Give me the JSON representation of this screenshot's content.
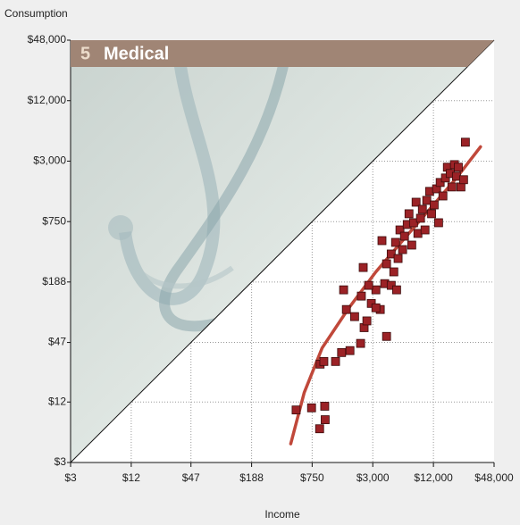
{
  "chart_data": {
    "type": "scatter",
    "panel": "5",
    "title": "Medical",
    "xlabel": "Income",
    "ylabel": "Consumption",
    "xscale": "log",
    "yscale": "log",
    "xlim": [
      3,
      48000
    ],
    "ylim": [
      3,
      48000
    ],
    "xticks": [
      {
        "value": 3,
        "label": "$3"
      },
      {
        "value": 12,
        "label": "$12"
      },
      {
        "value": 47,
        "label": "$47"
      },
      {
        "value": 188,
        "label": "$188"
      },
      {
        "value": 750,
        "label": "$750"
      },
      {
        "value": 3000,
        "label": "$3,000"
      },
      {
        "value": 12000,
        "label": "$12,000"
      },
      {
        "value": 48000,
        "label": "$48,000"
      }
    ],
    "yticks": [
      {
        "value": 3,
        "label": "$3"
      },
      {
        "value": 12,
        "label": "$12"
      },
      {
        "value": 47,
        "label": "$47"
      },
      {
        "value": 188,
        "label": "$188"
      },
      {
        "value": 750,
        "label": "$750"
      },
      {
        "value": 3000,
        "label": "$3,000"
      },
      {
        "value": 12000,
        "label": "$12,000"
      },
      {
        "value": 48000,
        "label": "$48,000"
      }
    ],
    "grid": true,
    "points": {
      "color": "#9b2226",
      "x": [
        520,
        740,
        1000,
        1010,
        890,
        900,
        980,
        1280,
        1470,
        1780,
        1640,
        1540,
        2270,
        2460,
        2310,
        2410,
        2620,
        2900,
        3220,
        3560,
        4110,
        3940,
        4110,
        4570,
        4850,
        5050,
        5350,
        5580,
        5930,
        6190,
        6590,
        6860,
        7310,
        7620,
        8070,
        8410,
        8930,
        9320,
        9900,
        10300,
        11000,
        11500,
        12200,
        12900,
        13500,
        14000,
        14900,
        15800,
        16500,
        17600,
        18300,
        19400,
        20300,
        21200,
        22500,
        23900,
        24900,
        3700,
        1980,
        2730,
        3220,
        4570,
        5170
      ],
      "y": [
        10,
        10.5,
        10.9,
        8,
        6.5,
        28.6,
        30.4,
        30.4,
        37.3,
        39,
        100,
        157,
        46,
        66,
        136,
        262,
        77,
        115,
        157,
        100,
        54,
        181,
        285,
        357,
        237,
        466,
        322,
        620,
        395,
        537,
        702,
        898,
        438,
        731,
        1170,
        572,
        810,
        994,
        620,
        1220,
        1500,
        898,
        1100,
        1590,
        731,
        1840,
        1350,
        2040,
        2610,
        2260,
        1660,
        2770,
        2120,
        2610,
        1660,
        1960,
        4630,
        485,
        85,
        174,
        104,
        174,
        157
      ]
    },
    "fit": {
      "color": "#c0483a",
      "x": [
        460,
        626,
        942,
        1740,
        3220,
        5930,
        11000,
        20300,
        35200
      ],
      "y": [
        4.6,
        14.9,
        41.4,
        104,
        237,
        485,
        994,
        2040,
        4170
      ]
    }
  }
}
